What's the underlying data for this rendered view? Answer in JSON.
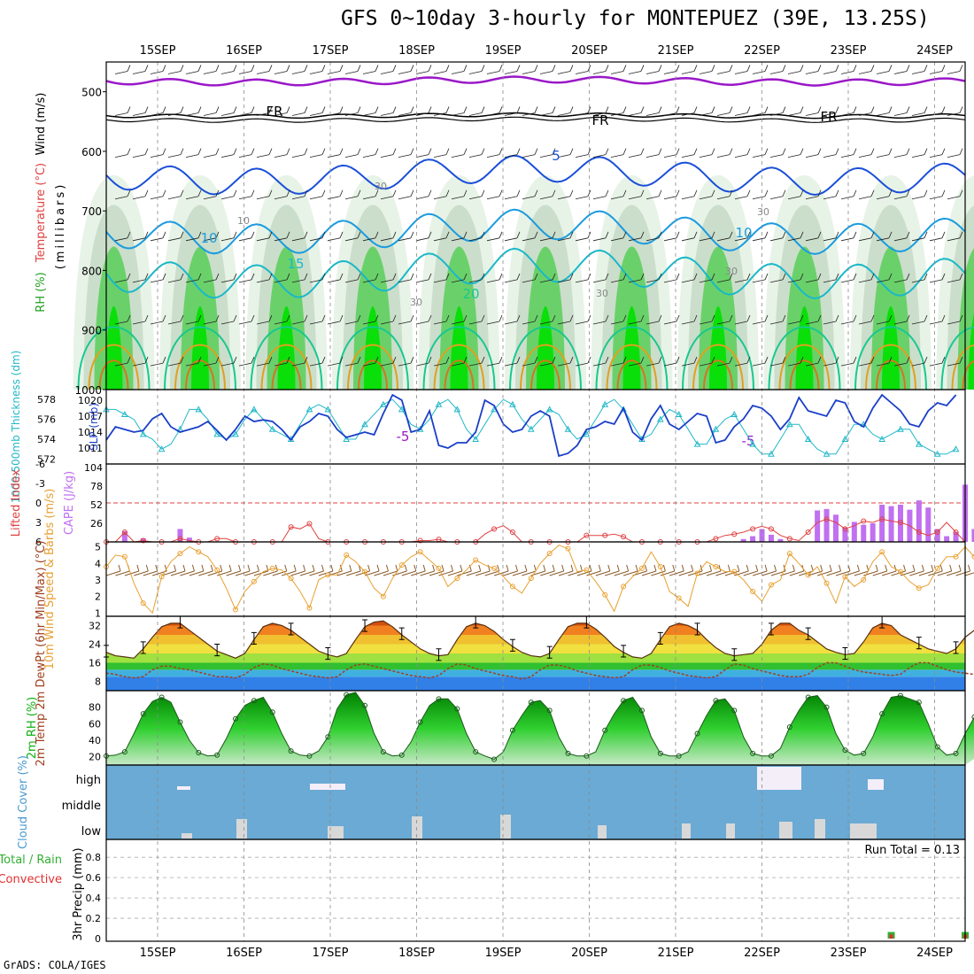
{
  "title": "GFS 0~10day 3-hourly for MONTEPUEZ (39E, 13.25S)",
  "credit": "GrADS: COLA/IGES",
  "colors": {
    "frame": "#000000",
    "grid": "#b0b0b0",
    "rh_light": "#e4f2e4",
    "rh_mid": "#c8dcc8",
    "rh_dark": "#5fcf5f",
    "rh_bright": "#00e000",
    "temp_neg5": "#9a18c8",
    "temp_fr": "#000000",
    "temp5": "#1a4fd8",
    "temp10": "#1a9be0",
    "temp15": "#1ab8c8",
    "temp20": "#18c890",
    "temp25": "#e0a020",
    "temp30": "#d07820",
    "slp": "#1a3fc8",
    "thick": "#20b8c8",
    "cape": "#c070f0",
    "lifted": "#e04040",
    "wind_speed": "#e8a030",
    "barb": "#8a5a2a",
    "dew": "#a04020",
    "rh2m": "#10b010",
    "cloud_bg": "#6aaad4",
    "cloud_fill": "#ece6f2",
    "precip_total": "#30b030",
    "precip_conv": "#e03030"
  },
  "x_ticks": [
    "15SEP",
    "16SEP",
    "17SEP",
    "18SEP",
    "19SEP",
    "20SEP",
    "21SEP",
    "22SEP",
    "23SEP",
    "24SEP"
  ],
  "chart_data": [
    {
      "type": "contour",
      "panel": "upper_air",
      "ylabel": "(millibars)",
      "legend_labels": [
        "Wind (m/s)",
        "Temperature (°C)",
        "RH (%)"
      ],
      "ylim": [
        1000,
        450
      ],
      "y_ticks": [
        500,
        600,
        700,
        800,
        900,
        1000
      ],
      "contour_labels": [
        "-5",
        "-5",
        "FR",
        "FR",
        "FR",
        "5",
        "10",
        "10",
        "15",
        "20",
        "10",
        "30",
        "30",
        "30",
        "30",
        "30"
      ]
    },
    {
      "type": "line",
      "panel": "slp_thickness",
      "ylabel_left": "1000-500mb Thickness (dm)",
      "ylabel_right": "SLP (mb)",
      "left_ticks": [
        "578",
        "576",
        "574",
        "572"
      ],
      "right_ticks": [
        "1020",
        "1017",
        "1014",
        "1011"
      ],
      "slp_range": [
        1008,
        1022
      ],
      "thick_range": [
        571.5,
        579
      ],
      "series": [
        {
          "name": "SLP",
          "values": [
            1012.5,
            1015,
            1014.5,
            1014,
            1014.3,
            1016.5,
            1017.5,
            1015,
            1014,
            1014.5,
            1015,
            1016,
            1014.3,
            1012.5,
            1014.5,
            1017,
            1016,
            1016.3,
            1016,
            1014.5,
            1012.5,
            1015,
            1016,
            1017.5,
            1017,
            1014.5,
            1013,
            1013.5,
            1014,
            1013.5,
            1017.5,
            1021,
            1020,
            1014,
            1014.5,
            1018,
            1011.5,
            1011,
            1012,
            1012,
            1014,
            1020,
            1019,
            1015.5,
            1014,
            1014.5,
            1017,
            1018,
            1017,
            1009.5,
            1010,
            1011.5,
            1014.5,
            1015,
            1016,
            1015.5,
            1018.5,
            1014,
            1012.5,
            1016.5,
            1019,
            1015.5,
            1014.5,
            1016,
            1017.5,
            1017,
            1012,
            1012.5,
            1015,
            1016.5,
            1019,
            1018.5,
            1017,
            1014.5,
            1016.5,
            1020.5,
            1018,
            1017.5,
            1017,
            1020,
            1019.5,
            1016,
            1015,
            1018.5,
            1021,
            1019.5,
            1018,
            1015.5,
            1015,
            1018,
            1019.5,
            1019,
            1021
          ]
        },
        {
          "name": "Thickness",
          "values": [
            577,
            577,
            576.5,
            576,
            574.5,
            574,
            573,
            573.5,
            575,
            577,
            577,
            576,
            574.5,
            574,
            574.5,
            576,
            577,
            576,
            575,
            574.5,
            574,
            575.5,
            577,
            577.5,
            577,
            575.5,
            574,
            574,
            575.5,
            576.5,
            577.5,
            578,
            577,
            575.5,
            575,
            576,
            577.5,
            578,
            577,
            575,
            574,
            575.5,
            577,
            578,
            577.5,
            576,
            575,
            576,
            577,
            576.5,
            575,
            574,
            574.5,
            576,
            577.5,
            578,
            577,
            575.5,
            574,
            574.5,
            576,
            577,
            576.5,
            575,
            573.5,
            573.5,
            575,
            576,
            576.5,
            575,
            573.5,
            572.5,
            572.5,
            574,
            575.5,
            575.5,
            574,
            573,
            572.5,
            572.5,
            574,
            575.5,
            575.5,
            574.5,
            574,
            574.5,
            575,
            575,
            573.5,
            573,
            572.5,
            572.5,
            573
          ]
        }
      ]
    },
    {
      "type": "bar",
      "panel": "cape_li",
      "ylabel_left": "Lifted Index",
      "ylabel_right": "CAPE (J/kg)",
      "left_ticks": [
        "-6",
        "-3",
        "0",
        "3",
        "6"
      ],
      "right_ticks": [
        "104",
        "78",
        "52",
        "26",
        ""
      ],
      "cape_range": [
        0,
        104
      ],
      "li_range": [
        -6,
        6
      ],
      "series": [
        {
          "name": "CAPE",
          "values": [
            0,
            0,
            15,
            0,
            5,
            0,
            0,
            0,
            18,
            6,
            0,
            0,
            0,
            0,
            0,
            0,
            0,
            0,
            0,
            0,
            0,
            0,
            0,
            0,
            0,
            0,
            0,
            0,
            0,
            0,
            0,
            0,
            0,
            0,
            0,
            0,
            0,
            0,
            0,
            0,
            0,
            0,
            0,
            0,
            0,
            0,
            0,
            0,
            0,
            0,
            0,
            0,
            0,
            0,
            0,
            0,
            0,
            0,
            0,
            0,
            0,
            0,
            0,
            0,
            0,
            0,
            0,
            0,
            0,
            4,
            8,
            18,
            10,
            4,
            0,
            0,
            0,
            44,
            46,
            38,
            20,
            28,
            24,
            26,
            52,
            50,
            52,
            45,
            58,
            48,
            18,
            8,
            14,
            80,
            18,
            5
          ]
        },
        {
          "name": "Lifted Index",
          "values": [
            6,
            6,
            4.5,
            6,
            5.8,
            6,
            6,
            6,
            5.5,
            5.8,
            6,
            6,
            5.5,
            5.5,
            6,
            6,
            6,
            6,
            6,
            6,
            3.7,
            4,
            3.2,
            5.5,
            6,
            6,
            6,
            6,
            6,
            6,
            6,
            6,
            6,
            6,
            5.8,
            5.8,
            5.6,
            6,
            6,
            6,
            6,
            4.8,
            4,
            3.5,
            4.5,
            6,
            6,
            6,
            6,
            6,
            6,
            6,
            5,
            5,
            5,
            4.8,
            5.2,
            6,
            6,
            6,
            6,
            6,
            6,
            6,
            6,
            6,
            5.5,
            5,
            4.8,
            4.5,
            4,
            3.6,
            4,
            5,
            5.5,
            5.8,
            4.5,
            3,
            2.5,
            3,
            4,
            3.5,
            2.8,
            3,
            2.5,
            2.8,
            3,
            3.5,
            4.5,
            5,
            4.5,
            3,
            4.5,
            6
          ]
        }
      ]
    },
    {
      "type": "line",
      "panel": "wind10m",
      "ylabel": "10m Wind Speed & Barbs (m/s)",
      "y_ticks": [
        "5",
        "4",
        "3",
        "2",
        "1"
      ],
      "ylim": [
        0.8,
        5.3
      ],
      "series": [
        {
          "name": "Speed",
          "values": [
            3.8,
            4.5,
            4.4,
            2.8,
            1.6,
            1.0,
            3.2,
            4.1,
            4.6,
            5.0,
            4.7,
            4.4,
            3.6,
            2.5,
            1.2,
            2.3,
            2.9,
            3.5,
            3.7,
            3.6,
            3.1,
            2.3,
            1.3,
            3.0,
            3.3,
            3.3,
            4.5,
            4.1,
            3.5,
            2.5,
            2.0,
            3.1,
            3.9,
            4.4,
            4.7,
            4.2,
            3.7,
            2.6,
            3.1,
            3.6,
            4.2,
            3.9,
            3.7,
            3.2,
            2.6,
            2.2,
            3.1,
            4.0,
            4.6,
            5.1,
            4.9,
            3.5,
            3.6,
            2.9,
            2.1,
            1.1,
            2.6,
            3.2,
            3.7,
            4.7,
            3.8,
            2.3,
            1.9,
            1.4,
            3.4,
            4.1,
            3.8,
            3.5,
            3.5,
            3.0,
            2.3,
            1.7,
            2.7,
            3.0,
            4.6,
            4.0,
            3.3,
            3.8,
            2.8,
            1.6,
            3.2,
            2.6,
            3.0,
            4.1,
            4.7,
            3.8,
            3.5,
            2.9,
            2.5,
            2.7,
            3.7,
            4.4,
            4.4,
            5.0,
            4.4,
            3.9
          ]
        }
      ]
    },
    {
      "type": "area",
      "panel": "temp2m",
      "ylabel": "2m Temp 2m DewPt (6hr Min/Max) (°C)",
      "y_ticks": [
        "32",
        "24",
        "16",
        "8"
      ],
      "ylim": [
        4,
        36
      ],
      "series": [
        {
          "name": "Temp",
          "values": [
            20.5,
            19,
            18.5,
            18,
            22,
            27,
            31.5,
            33,
            33,
            30,
            27,
            24,
            21,
            19.5,
            18,
            20,
            26,
            31.5,
            33,
            32,
            30,
            27,
            24,
            21,
            19.5,
            18.5,
            20,
            26,
            31.5,
            33.5,
            34,
            31.5,
            28,
            25,
            22,
            20,
            19,
            19.5,
            26,
            31.5,
            33,
            32,
            29.5,
            26,
            23,
            20.5,
            19,
            18.5,
            20,
            26,
            31.5,
            33,
            33,
            30.5,
            27,
            23,
            20.5,
            18.5,
            18,
            20,
            26,
            31.5,
            33,
            32,
            30,
            26,
            22.5,
            20,
            19,
            19.5,
            20,
            24,
            30,
            33,
            33,
            30,
            28,
            25,
            22,
            20.5,
            19.5,
            20,
            25,
            31,
            33,
            32,
            28,
            26,
            24,
            22,
            21,
            20,
            22,
            27,
            30,
            32,
            31,
            28,
            24,
            21,
            19,
            24
          ]
        },
        {
          "name": "DewPt",
          "values": [
            11.5,
            11,
            10,
            9.5,
            10,
            13,
            14.5,
            14.5,
            13.5,
            13,
            12,
            11,
            10,
            10,
            9.5,
            11,
            14,
            15.5,
            15,
            13.5,
            12.5,
            11.5,
            10.5,
            10,
            9.5,
            10,
            13,
            15,
            15.5,
            14.5,
            13.5,
            12.5,
            11.5,
            10.5,
            10,
            9.5,
            10.5,
            13.5,
            15.5,
            15,
            13.5,
            12.5,
            11.5,
            10.5,
            10,
            9,
            10,
            13,
            15,
            15,
            14,
            12.5,
            11.5,
            10.5,
            10,
            9.5,
            10,
            13,
            15,
            15,
            14,
            12.5,
            11.5,
            10.5,
            10,
            9.5,
            10,
            13,
            15.5,
            15,
            13.5,
            12.5,
            11.5,
            10.5,
            10,
            10,
            11,
            14,
            16,
            16,
            14.5,
            13,
            12,
            11.5,
            11,
            10.5,
            11,
            14,
            16,
            16,
            14.5,
            13,
            12,
            11.5,
            11,
            12,
            14,
            15
          ]
        }
      ]
    },
    {
      "type": "area",
      "panel": "rh2m",
      "ylabel": "2m RH (%)",
      "y_ticks": [
        "80",
        "60",
        "40",
        "20"
      ],
      "ylim": [
        10,
        100
      ],
      "series": [
        {
          "name": "RH",
          "values": [
            21,
            22,
            26,
            48,
            72,
            87,
            92,
            86,
            62,
            40,
            25,
            21,
            22,
            42,
            66,
            82,
            88,
            92,
            74,
            48,
            27,
            22,
            21,
            27,
            44,
            78,
            95,
            98,
            82,
            48,
            26,
            21,
            22,
            38,
            62,
            82,
            90,
            90,
            78,
            48,
            26,
            21,
            17,
            26,
            52,
            70,
            86,
            88,
            76,
            44,
            24,
            21,
            21,
            26,
            52,
            72,
            88,
            92,
            76,
            44,
            24,
            21,
            21,
            26,
            48,
            70,
            88,
            90,
            76,
            44,
            24,
            21,
            21,
            30,
            56,
            76,
            92,
            94,
            80,
            48,
            28,
            22,
            24,
            44,
            72,
            92,
            94,
            90,
            86,
            60,
            32,
            22,
            24,
            48,
            68,
            82,
            88,
            94,
            90,
            56
          ]
        }
      ]
    },
    {
      "type": "bar",
      "panel": "cloud_cover",
      "ylabel": "Cloud Cover (%)",
      "level_labels": [
        "high",
        "middle",
        "low"
      ]
    },
    {
      "type": "bar",
      "panel": "precip",
      "ylabel": "3hr Precip (mm)",
      "legend_labels": [
        "Total / Rain",
        "Convective"
      ],
      "run_total_label": "Run Total = 0.13",
      "y_ticks": [
        "0.8",
        "0.6",
        "0.4",
        "0.2",
        "0"
      ],
      "ylim": [
        0,
        0.95
      ],
      "series": [
        {
          "name": "Total",
          "values": [
            [
              85,
              0.065
            ],
            [
              93,
              0.065
            ]
          ]
        },
        {
          "name": "Convective",
          "values": [
            [
              85,
              0.04
            ],
            [
              93,
              0.04
            ]
          ]
        }
      ]
    }
  ]
}
